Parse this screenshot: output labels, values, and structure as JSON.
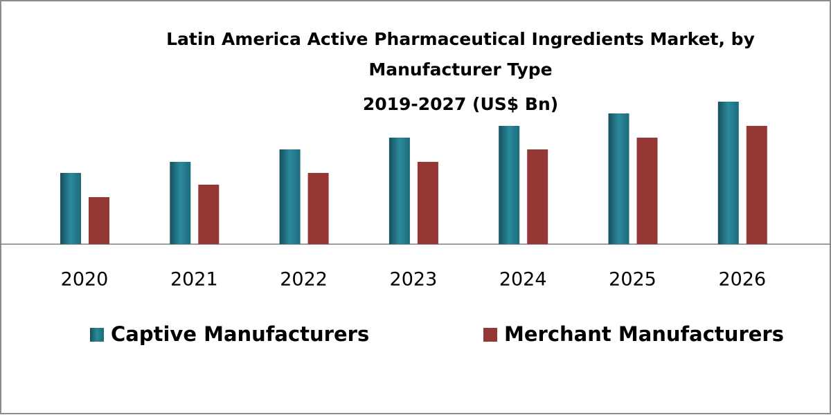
{
  "chart_data": {
    "type": "bar",
    "title": [
      "Latin America Active Pharmaceutical Ingredients Market, by",
      "Manufacturer Type"
    ],
    "subtitle": "2019-2027 (US$ Bn)",
    "categories": [
      "2020",
      "2021",
      "2022",
      "2023",
      "2024",
      "2025",
      "2026"
    ],
    "series": [
      {
        "name": "Captive Manufacturers",
        "color": "#1e6b7b",
        "values": [
          103,
          119,
          137,
          154,
          171,
          189,
          206
        ]
      },
      {
        "name": "Merchant Manufacturers",
        "color": "#953735",
        "values": [
          68,
          86,
          103,
          119,
          137,
          154,
          171
        ]
      }
    ]
  }
}
